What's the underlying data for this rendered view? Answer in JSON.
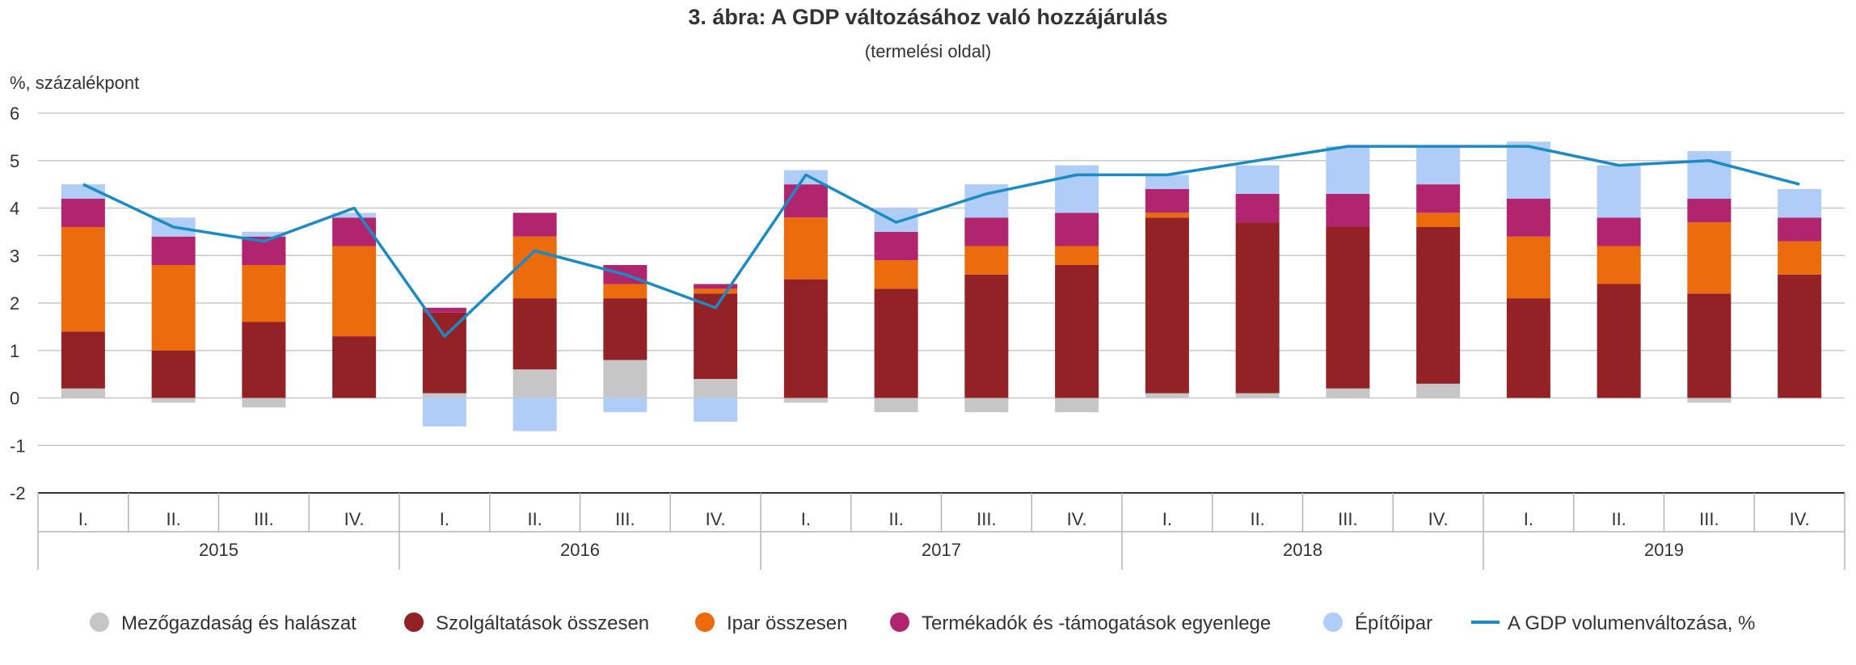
{
  "chart_data": {
    "type": "bar",
    "stacked": true,
    "title": "3. ábra: A GDP változásához való hozzájárulás",
    "subtitle": "(termelési oldal)",
    "ylabel": "%, százalékpont",
    "ylim": [
      -2,
      6
    ],
    "yticks": [
      "6",
      "5",
      "4",
      "3",
      "2",
      "1",
      "0",
      "-1",
      "-2"
    ],
    "grid": true,
    "legend": "bottom",
    "quarters": [
      "I.",
      "II.",
      "III.",
      "IV.",
      "I.",
      "II.",
      "III.",
      "IV.",
      "I.",
      "II.",
      "III.",
      "IV.",
      "I.",
      "II.",
      "III.",
      "IV.",
      "I.",
      "II.",
      "III.",
      "IV."
    ],
    "years": [
      "2015",
      "2016",
      "2017",
      "2018",
      "2019"
    ],
    "series": [
      {
        "name": "Mezőgazdaság és halászat",
        "color": "#c6c6c6",
        "values": [
          0.2,
          -0.1,
          -0.2,
          0.0,
          0.1,
          0.6,
          0.8,
          0.4,
          -0.1,
          -0.3,
          -0.3,
          -0.3,
          0.1,
          0.1,
          0.2,
          0.3,
          0.0,
          0.0,
          -0.1,
          0.0
        ]
      },
      {
        "name": "Szolgáltatások összesen",
        "color": "#922225",
        "values": [
          1.2,
          1.0,
          1.6,
          1.3,
          1.7,
          1.5,
          1.3,
          1.8,
          2.5,
          2.3,
          2.6,
          2.8,
          3.7,
          3.6,
          3.4,
          3.3,
          2.1,
          2.4,
          2.2,
          2.6
        ]
      },
      {
        "name": "Ipar összesen",
        "color": "#ec6b0c",
        "values": [
          2.2,
          1.8,
          1.2,
          1.9,
          0.0,
          1.3,
          0.3,
          0.1,
          1.3,
          0.6,
          0.6,
          0.4,
          0.1,
          0.0,
          0.0,
          0.3,
          1.3,
          0.8,
          1.5,
          0.7
        ]
      },
      {
        "name": "Termékadók és -támogatások egyenlege",
        "color": "#b1256e",
        "values": [
          0.6,
          0.6,
          0.6,
          0.6,
          0.1,
          0.5,
          0.4,
          0.1,
          0.7,
          0.6,
          0.6,
          0.7,
          0.5,
          0.6,
          0.7,
          0.6,
          0.8,
          0.6,
          0.5,
          0.5
        ]
      },
      {
        "name": "Építőipar",
        "color": "#b0cdf7",
        "values": [
          0.3,
          0.4,
          0.1,
          0.1,
          -0.6,
          -0.7,
          -0.3,
          -0.5,
          0.3,
          0.5,
          0.7,
          1.0,
          0.3,
          0.6,
          1.0,
          0.8,
          1.2,
          1.1,
          1.0,
          0.6
        ]
      }
    ],
    "line": {
      "name": "A GDP volumenváltozása, %",
      "color": "#1a8bc4",
      "values": [
        4.5,
        3.6,
        3.3,
        4.0,
        1.3,
        3.1,
        2.6,
        1.9,
        4.7,
        3.7,
        4.3,
        4.7,
        4.7,
        5.0,
        5.3,
        5.3,
        5.3,
        4.9,
        5.0,
        4.5
      ]
    }
  }
}
